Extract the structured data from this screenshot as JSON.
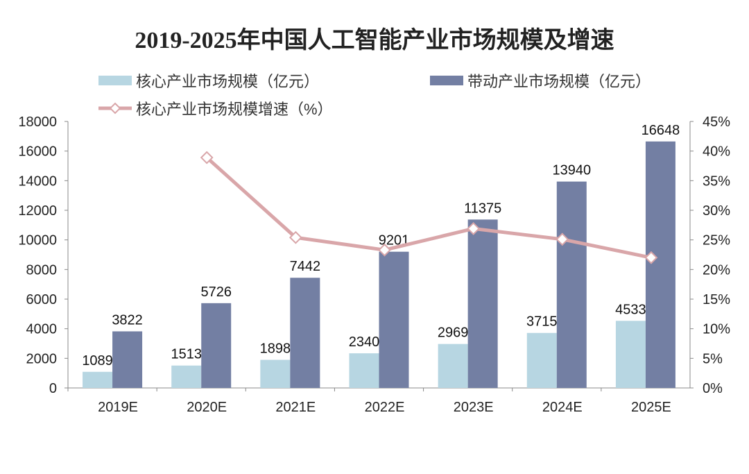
{
  "chart_data": {
    "type": "bar",
    "title": "2019-2025年中国人工智能产业市场规模及增速",
    "categories": [
      "2019E",
      "2020E",
      "2021E",
      "2022E",
      "2023E",
      "2024E",
      "2025E"
    ],
    "series": [
      {
        "name": "核心产业市场规模（亿元）",
        "type": "bar",
        "axis": "left",
        "color": "#b7d6e2",
        "values": [
          1089,
          1513,
          1898,
          2340,
          2969,
          3715,
          4533
        ]
      },
      {
        "name": "带动产业市场规模（亿元）",
        "type": "bar",
        "axis": "left",
        "color": "#737fa3",
        "values": [
          3822,
          5726,
          7442,
          9201,
          11375,
          13940,
          16648
        ]
      },
      {
        "name": "核心产业市场规模增速（%）",
        "type": "line",
        "axis": "right",
        "color": "#d9a6a9",
        "values": [
          null,
          38.9,
          25.4,
          23.3,
          26.9,
          25.1,
          22.0
        ]
      }
    ],
    "ylim": [
      0,
      18000
    ],
    "yticks": [
      "0",
      "2000",
      "4000",
      "6000",
      "8000",
      "10000",
      "12000",
      "14000",
      "16000",
      "18000"
    ],
    "y2lim": [
      0,
      45
    ],
    "y2ticks": [
      "0%",
      "5%",
      "10%",
      "15%",
      "20%",
      "25%",
      "30%",
      "35%",
      "40%",
      "45%"
    ],
    "grid": false,
    "legend_placement": "top"
  }
}
